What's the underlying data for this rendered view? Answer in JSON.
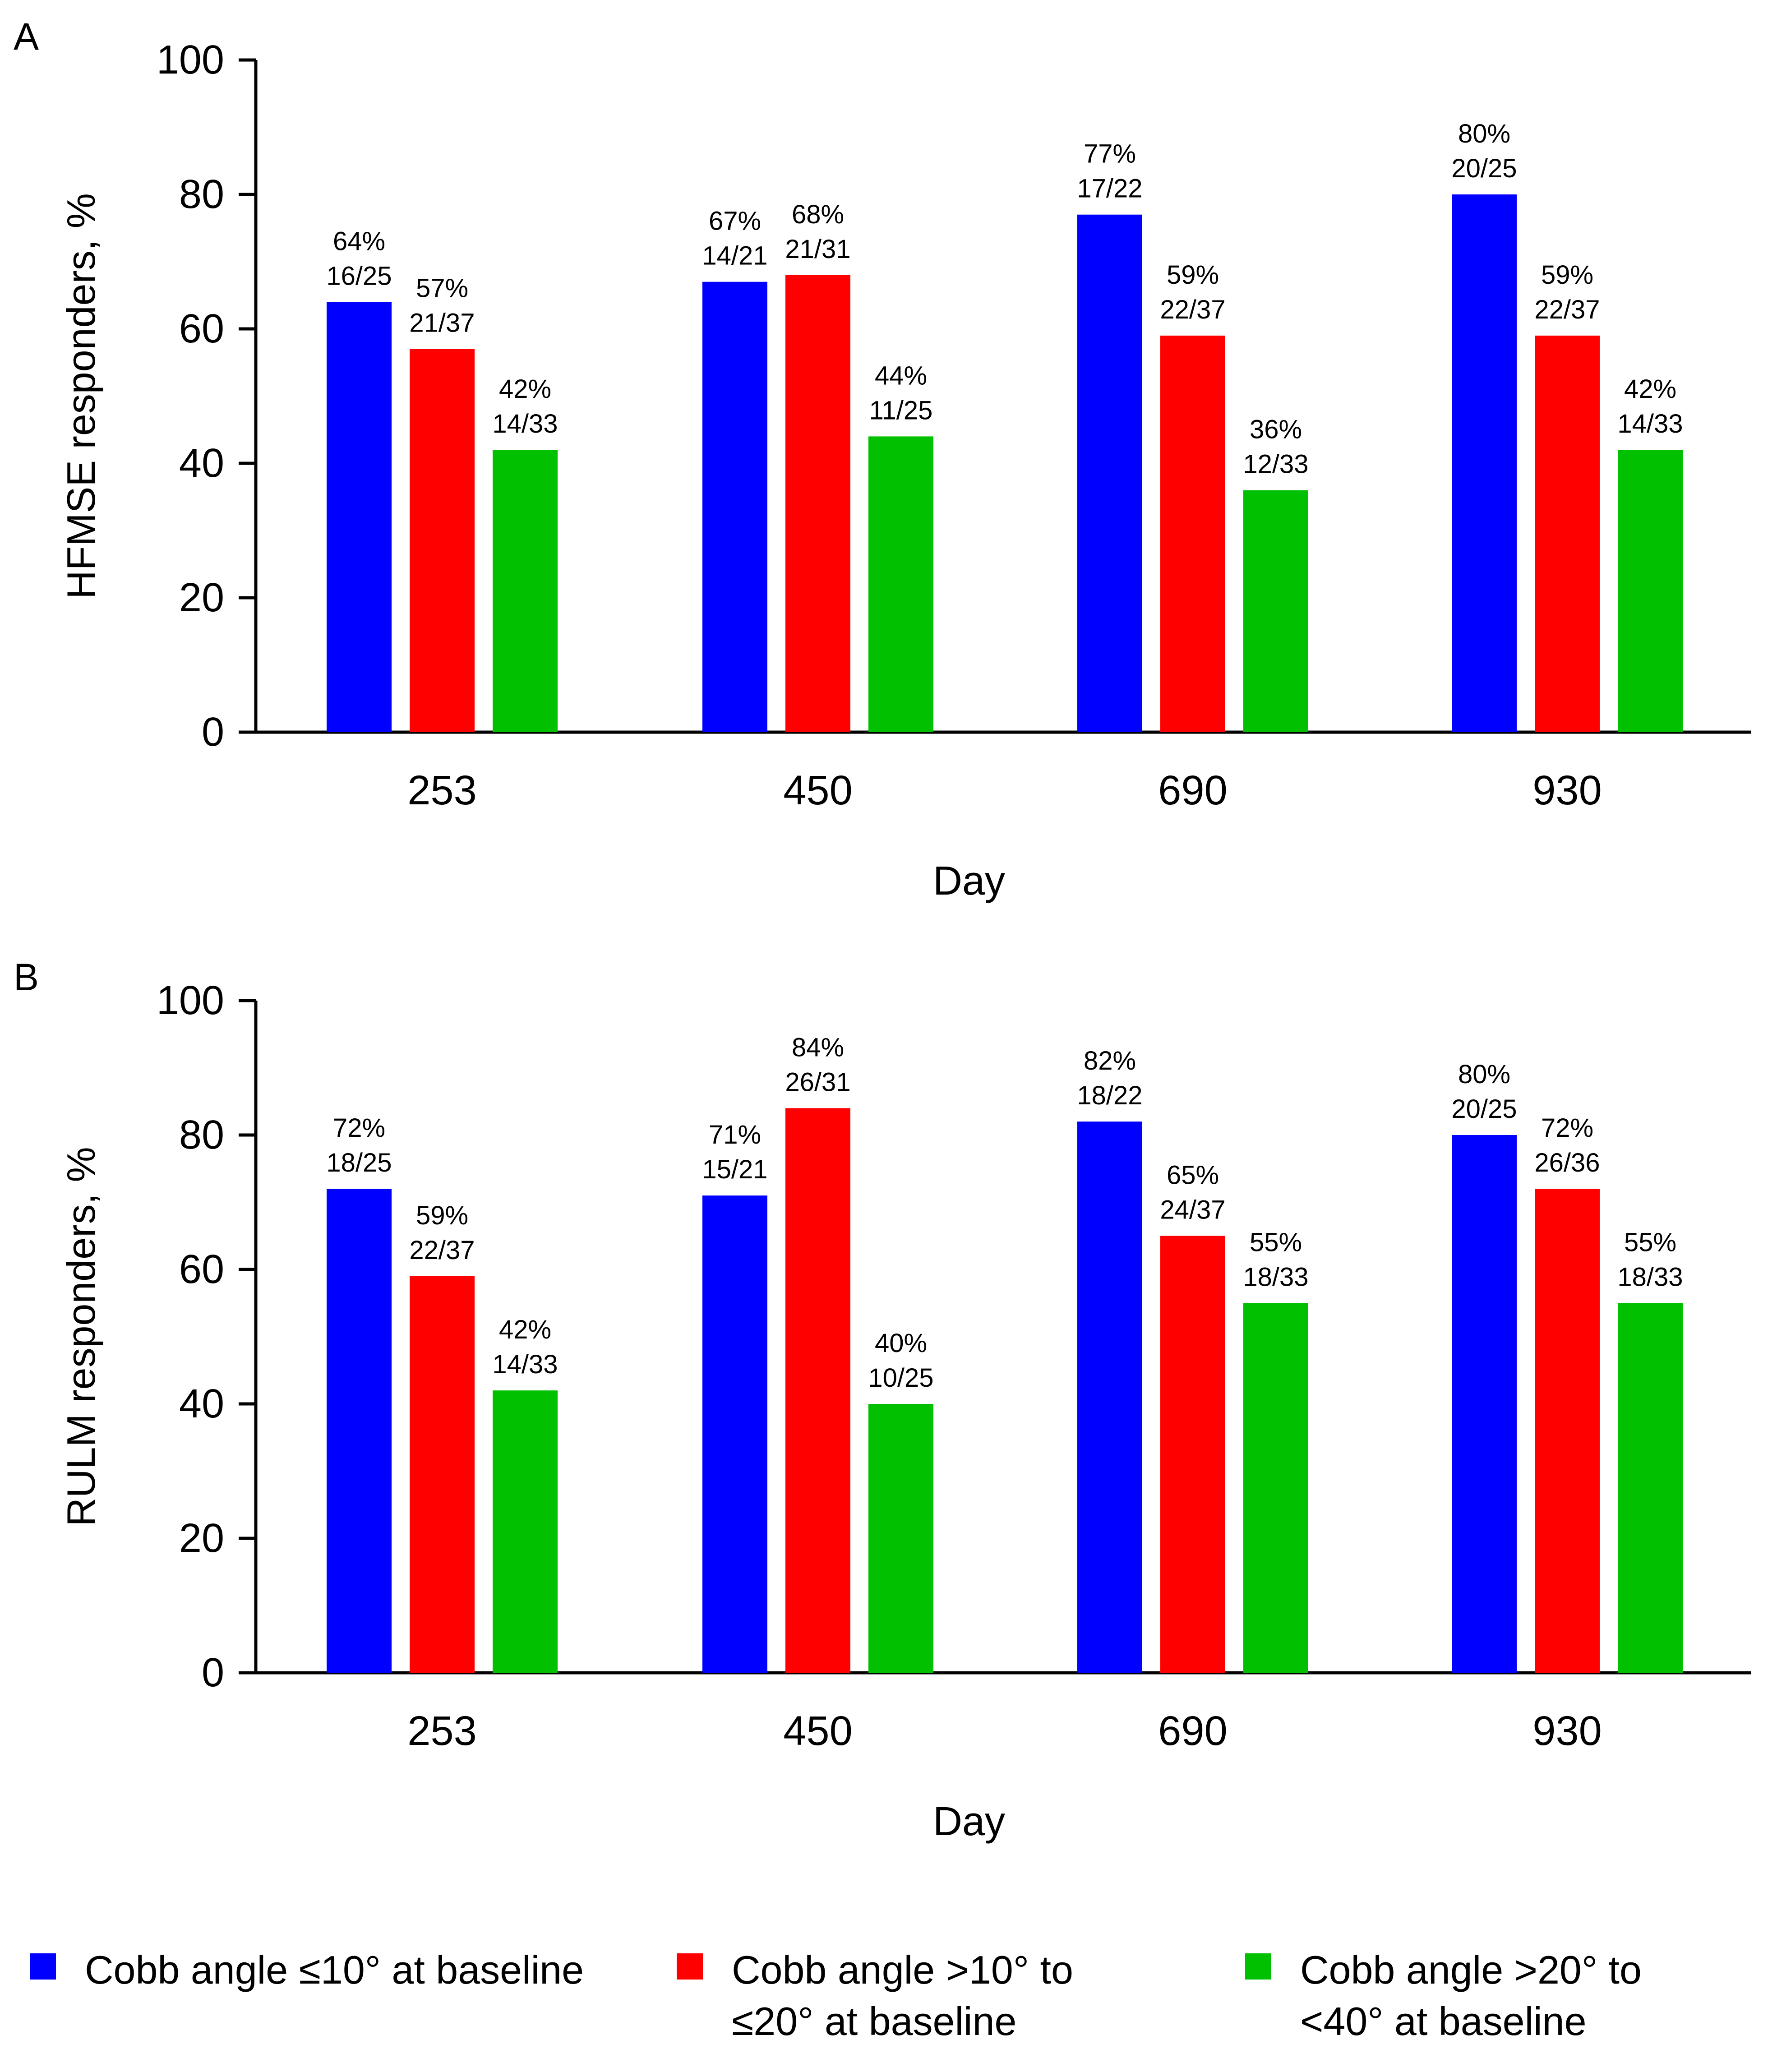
{
  "colors": {
    "group1": "#0000ff",
    "group2": "#ff0000",
    "group3": "#00c000"
  },
  "legend": [
    {
      "line1": "Cobb angle ≤10° at baseline",
      "line2": ""
    },
    {
      "line1": "Cobb angle >10° to",
      "line2": "≤20° at baseline"
    },
    {
      "line1": "Cobb angle >20° to",
      "line2": "<40° at baseline"
    }
  ],
  "chart_data": [
    {
      "type": "bar",
      "panel": "A",
      "ylabel": "HFMSE responders, %",
      "xlabel": "Day",
      "ylim": [
        0,
        100
      ],
      "yticks": [
        0,
        20,
        40,
        60,
        80,
        100
      ],
      "categories": [
        "253",
        "450",
        "690",
        "930"
      ],
      "series": [
        {
          "name": "Cobb angle ≤10° at baseline",
          "values": [
            64,
            67,
            77,
            80
          ],
          "labels": [
            "64%",
            "67%",
            "77%",
            "80%"
          ],
          "fractions": [
            "16/25",
            "14/21",
            "17/22",
            "20/25"
          ]
        },
        {
          "name": "Cobb angle >10° to ≤20° at baseline",
          "values": [
            57,
            68,
            59,
            59
          ],
          "labels": [
            "57%",
            "68%",
            "59%",
            "59%"
          ],
          "fractions": [
            "21/37",
            "21/31",
            "22/37",
            "22/37"
          ]
        },
        {
          "name": "Cobb angle >20° to <40° at baseline",
          "values": [
            42,
            44,
            36,
            42
          ],
          "labels": [
            "42%",
            "44%",
            "36%",
            "42%"
          ],
          "fractions": [
            "14/33",
            "11/25",
            "12/33",
            "14/33"
          ]
        }
      ]
    },
    {
      "type": "bar",
      "panel": "B",
      "ylabel": "RULM responders, %",
      "xlabel": "Day",
      "ylim": [
        0,
        100
      ],
      "yticks": [
        0,
        20,
        40,
        60,
        80,
        100
      ],
      "categories": [
        "253",
        "450",
        "690",
        "930"
      ],
      "series": [
        {
          "name": "Cobb angle ≤10° at baseline",
          "values": [
            72,
            71,
            82,
            80
          ],
          "labels": [
            "72%",
            "71%",
            "82%",
            "80%"
          ],
          "fractions": [
            "18/25",
            "15/21",
            "18/22",
            "20/25"
          ]
        },
        {
          "name": "Cobb angle >10° to ≤20° at baseline",
          "values": [
            59,
            84,
            65,
            72
          ],
          "labels": [
            "59%",
            "84%",
            "65%",
            "72%"
          ],
          "fractions": [
            "22/37",
            "26/31",
            "24/37",
            "26/36"
          ]
        },
        {
          "name": "Cobb angle >20° to <40° at baseline",
          "values": [
            42,
            40,
            55,
            55
          ],
          "labels": [
            "42%",
            "40%",
            "55%",
            "55%"
          ],
          "fractions": [
            "14/33",
            "10/25",
            "18/33",
            "18/33"
          ]
        }
      ]
    }
  ]
}
